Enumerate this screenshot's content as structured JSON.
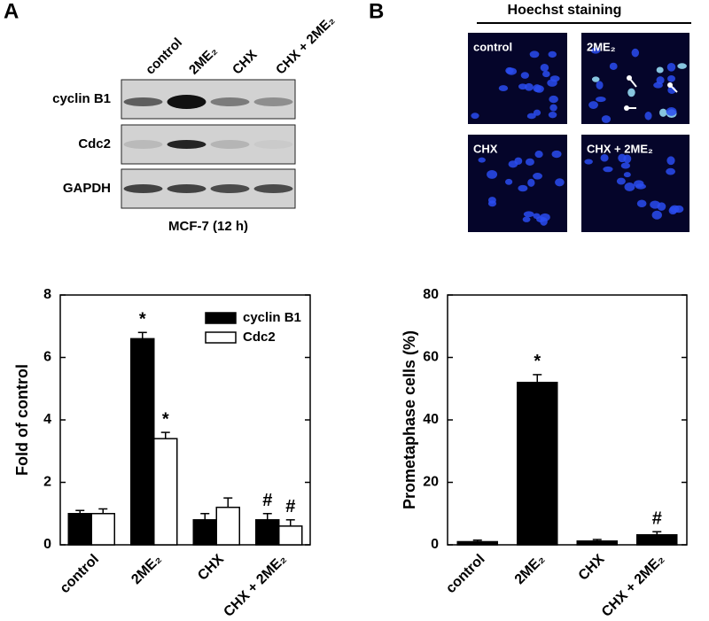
{
  "panel_labels": [
    "A",
    "B"
  ],
  "blot": {
    "lanes": [
      "control",
      "2ME₂",
      "CHX",
      "CHX + 2ME₂"
    ],
    "rows": [
      "cyclin B1",
      "Cdc2",
      "GAPDH"
    ],
    "caption": "MCF-7 (12 h)"
  },
  "staining": {
    "title": "Hoechst staining",
    "images": [
      "control",
      "2ME₂",
      "CHX",
      "CHX  + 2ME₂"
    ]
  },
  "chart_data": [
    {
      "type": "bar",
      "ylabel": "Fold of control",
      "categories": [
        "control",
        "2ME₂",
        "CHX",
        "CHX + 2ME₂"
      ],
      "series": [
        {
          "name": "cyclin B1",
          "color": "#000000",
          "values": [
            1.0,
            6.6,
            0.8,
            0.8
          ],
          "errors": [
            0.1,
            0.2,
            0.2,
            0.2
          ],
          "markers": [
            null,
            "*",
            null,
            "#"
          ]
        },
        {
          "name": "Cdc2",
          "color": "#ffffff",
          "values": [
            1.0,
            3.4,
            1.2,
            0.6
          ],
          "errors": [
            0.15,
            0.2,
            0.3,
            0.2
          ],
          "markers": [
            null,
            "*",
            null,
            "#"
          ]
        }
      ],
      "ylim": [
        0,
        8
      ],
      "yticks": [
        0,
        2,
        4,
        6,
        8
      ],
      "legend": "top-right"
    },
    {
      "type": "bar",
      "ylabel": "Prometaphase cells (%)",
      "categories": [
        "control",
        "2ME₂",
        "CHX",
        "CHX + 2ME₂"
      ],
      "series": [
        {
          "color": "#000000",
          "values": [
            1,
            52,
            1.2,
            3.2
          ],
          "errors": [
            0.5,
            2.5,
            0.5,
            1
          ],
          "markers": [
            null,
            "*",
            null,
            "#"
          ]
        }
      ],
      "ylim": [
        0,
        80
      ],
      "yticks": [
        0,
        20,
        40,
        60,
        80
      ]
    }
  ]
}
